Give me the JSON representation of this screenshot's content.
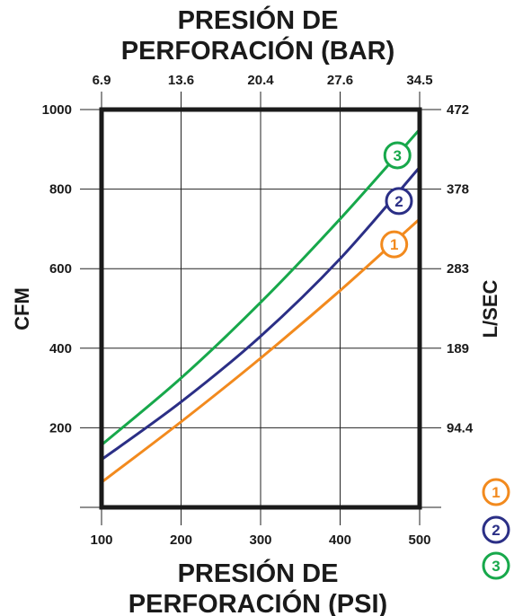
{
  "chart_data": {
    "type": "line",
    "title_top": [
      "PRESIÓN DE",
      "PERFORACIÓN (BAR)"
    ],
    "title_bottom": [
      "PRESIÓN DE",
      "PERFORACIÓN (PSI)"
    ],
    "ylabel_left": "CFM",
    "ylabel_right": "L/SEC",
    "x_bottom_ticks": [
      "100",
      "200",
      "300",
      "400",
      "500"
    ],
    "x_top_ticks": [
      "6.9",
      "13.6",
      "20.4",
      "27.6",
      "34.5"
    ],
    "y_left_ticks": [
      "200",
      "400",
      "600",
      "800",
      "1000"
    ],
    "y_right_ticks": [
      "94.4",
      "189",
      "283",
      "378",
      "472"
    ],
    "xlim": [
      100,
      500
    ],
    "ylim": [
      0,
      1000
    ],
    "grid": true,
    "legend_position": "bottom-right",
    "series": [
      {
        "name": "1",
        "color": "#f28a1e",
        "points": [
          [
            100,
            63
          ],
          [
            200,
            215
          ],
          [
            300,
            375
          ],
          [
            400,
            545
          ],
          [
            500,
            725
          ]
        ]
      },
      {
        "name": "2",
        "color": "#2b2f86",
        "points": [
          [
            100,
            120
          ],
          [
            200,
            265
          ],
          [
            300,
            430
          ],
          [
            400,
            625
          ],
          [
            500,
            855
          ]
        ]
      },
      {
        "name": "3",
        "color": "#17a84b",
        "points": [
          [
            100,
            157
          ],
          [
            200,
            325
          ],
          [
            300,
            515
          ],
          [
            400,
            725
          ],
          [
            500,
            950
          ]
        ]
      }
    ]
  }
}
